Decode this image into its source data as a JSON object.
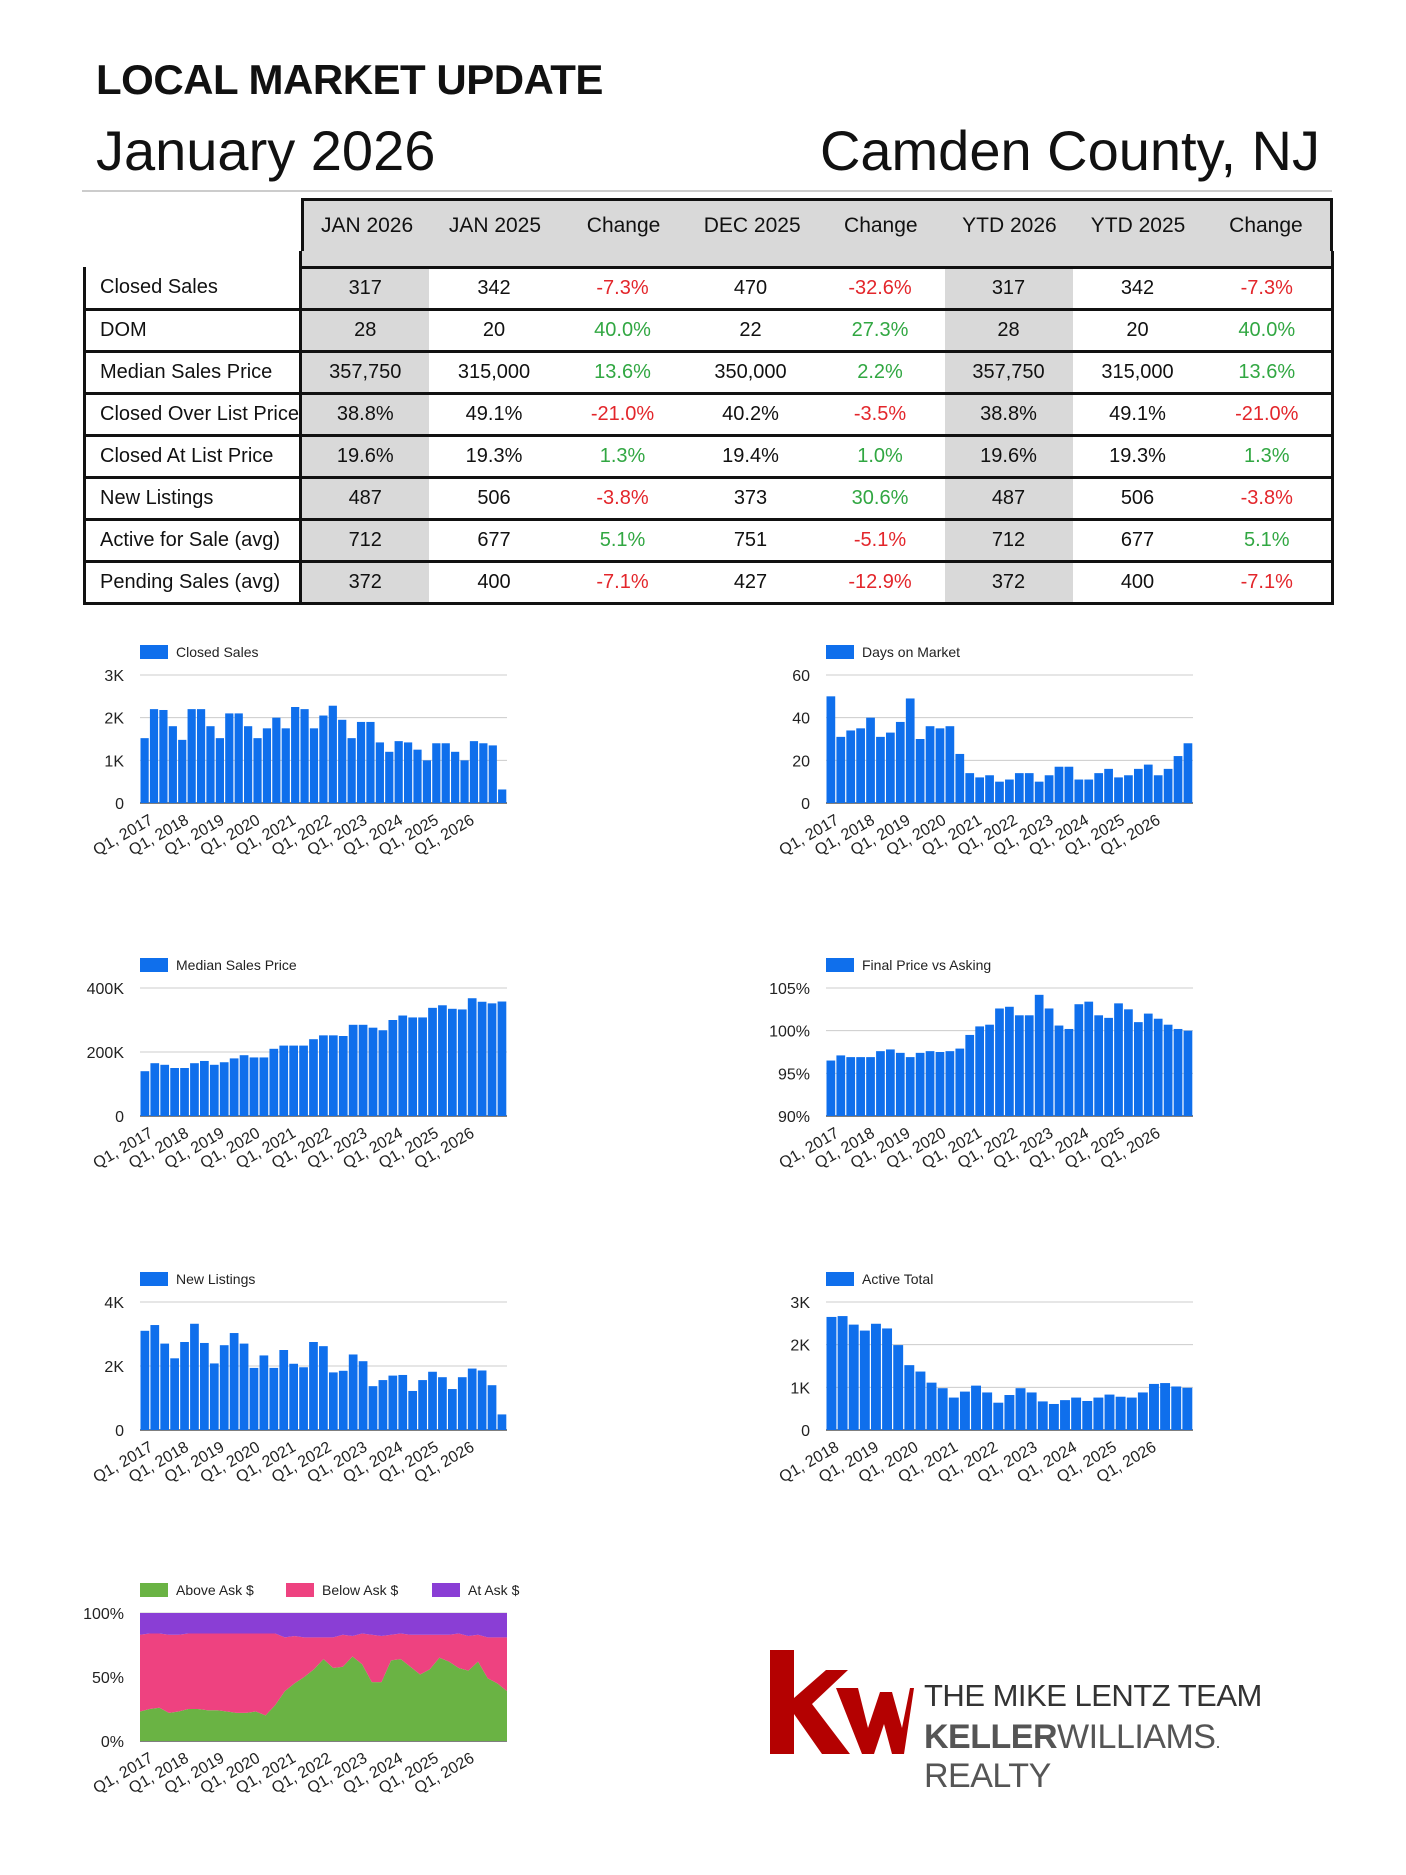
{
  "header": {
    "kicker": "LOCAL MARKET UPDATE",
    "month": "January 2026",
    "area": "Camden County, NJ"
  },
  "table": {
    "columns": [
      "JAN 2026",
      "JAN 2025",
      "Change",
      "DEC 2025",
      "Change",
      "YTD 2026",
      "YTD 2025",
      "Change"
    ],
    "rows": [
      {
        "label": "Closed Sales",
        "cells": [
          "317",
          "342",
          "-7.3%",
          "470",
          "-32.6%",
          "317",
          "342",
          "-7.3%"
        ]
      },
      {
        "label": "DOM",
        "cells": [
          "28",
          "20",
          "40.0%",
          "22",
          "27.3%",
          "28",
          "20",
          "40.0%"
        ]
      },
      {
        "label": "Median Sales Price",
        "cells": [
          "357,750",
          "315,000",
          "13.6%",
          "350,000",
          "2.2%",
          "357,750",
          "315,000",
          "13.6%"
        ]
      },
      {
        "label": "Closed Over List Price",
        "cells": [
          "38.8%",
          "49.1%",
          "-21.0%",
          "40.2%",
          "-3.5%",
          "38.8%",
          "49.1%",
          "-21.0%"
        ]
      },
      {
        "label": "Closed At List Price",
        "cells": [
          "19.6%",
          "19.3%",
          "1.3%",
          "19.4%",
          "1.0%",
          "19.6%",
          "19.3%",
          "1.3%"
        ]
      },
      {
        "label": "New Listings",
        "cells": [
          "487",
          "506",
          "-3.8%",
          "373",
          "30.6%",
          "487",
          "506",
          "-3.8%"
        ]
      },
      {
        "label": "Active for Sale (avg)",
        "cells": [
          "712",
          "677",
          "5.1%",
          "751",
          "-5.1%",
          "712",
          "677",
          "5.1%"
        ]
      },
      {
        "label": "Pending Sales (avg)",
        "cells": [
          "372",
          "400",
          "-7.1%",
          "427",
          "-12.9%",
          "372",
          "400",
          "-7.1%"
        ]
      }
    ],
    "colors": {
      "negative": "#e3262b",
      "positive": "#31a742",
      "shade": "#d9d9d9"
    }
  },
  "logo": {
    "team": "THE MIKE LENTZ TEAM",
    "brand_bold": "KELLER",
    "brand_rest": "WILLIAMS",
    "brand_mark": ".",
    "brand_tail": " REALTY",
    "color": "#b40101"
  },
  "chart_data": [
    {
      "type": "bar",
      "legend": "Closed Sales",
      "color": "#0f6fec",
      "ticks": [
        "0",
        "1K",
        "2K",
        "3K"
      ],
      "ylim": [
        0,
        3000
      ],
      "xlabels": [
        "Q1, 2017",
        "Q1, 2018",
        "Q1, 2019",
        "Q1, 2020",
        "Q1, 2021",
        "Q1, 2022",
        "Q1, 2023",
        "Q1, 2024",
        "Q1, 2025",
        "Q1, 2026"
      ],
      "values": [
        1520,
        2200,
        2180,
        1800,
        1480,
        2200,
        2200,
        1800,
        1520,
        2100,
        2100,
        1800,
        1520,
        1750,
        2000,
        1750,
        2250,
        2200,
        1750,
        2050,
        2280,
        1950,
        1520,
        1900,
        1900,
        1420,
        1200,
        1450,
        1420,
        1250,
        1000,
        1400,
        1400,
        1200,
        1000,
        1450,
        1400,
        1350,
        317
      ]
    },
    {
      "type": "bar",
      "legend": "Days on Market",
      "color": "#0f6fec",
      "ticks": [
        "0",
        "20",
        "40",
        "60"
      ],
      "ylim": [
        0,
        60
      ],
      "xlabels": [
        "Q1, 2017",
        "Q1, 2018",
        "Q1, 2019",
        "Q1, 2020",
        "Q1, 2021",
        "Q1, 2022",
        "Q1, 2023",
        "Q1, 2024",
        "Q1, 2025",
        "Q1, 2026"
      ],
      "values": [
        50,
        31,
        34,
        35,
        40,
        31,
        33,
        38,
        49,
        30,
        36,
        35,
        36,
        23,
        14,
        12,
        13,
        10,
        11,
        14,
        14,
        10,
        13,
        17,
        17,
        11,
        11,
        14,
        16,
        12,
        13,
        16,
        18,
        13,
        16,
        22,
        28
      ]
    },
    {
      "type": "bar",
      "legend": "Median Sales Price",
      "color": "#0f6fec",
      "ticks": [
        "0",
        "200K",
        "400K"
      ],
      "ylim": [
        0,
        400000
      ],
      "xlabels": [
        "Q1, 2017",
        "Q1, 2018",
        "Q1, 2019",
        "Q1, 2020",
        "Q1, 2021",
        "Q1, 2022",
        "Q1, 2023",
        "Q1, 2024",
        "Q1, 2025",
        "Q1, 2026"
      ],
      "values": [
        140000,
        165000,
        160000,
        150000,
        150000,
        165000,
        172000,
        160000,
        168000,
        180000,
        190000,
        183000,
        183000,
        210000,
        220000,
        220000,
        220000,
        240000,
        252000,
        252000,
        250000,
        285000,
        285000,
        276000,
        268000,
        300000,
        314000,
        308000,
        308000,
        338000,
        346000,
        335000,
        333000,
        368000,
        357000,
        352000,
        357750
      ]
    },
    {
      "type": "bar",
      "legend": "Final Price vs Asking",
      "color": "#0f6fec",
      "ticks": [
        "90%",
        "95%",
        "100%",
        "105%"
      ],
      "ylim": [
        90,
        105
      ],
      "xlabels": [
        "Q1, 2017",
        "Q1, 2018",
        "Q1, 2019",
        "Q1, 2020",
        "Q1, 2021",
        "Q1, 2022",
        "Q1, 2023",
        "Q1, 2024",
        "Q1, 2025",
        "Q1, 2026"
      ],
      "values": [
        96.5,
        97.1,
        96.9,
        96.9,
        96.9,
        97.6,
        97.8,
        97.4,
        96.9,
        97.4,
        97.6,
        97.5,
        97.6,
        97.9,
        99.5,
        100.5,
        100.7,
        102.6,
        102.8,
        101.8,
        101.8,
        104.2,
        102.6,
        100.6,
        100.2,
        103.1,
        103.4,
        101.8,
        101.5,
        103.2,
        102.5,
        101.0,
        102.0,
        101.4,
        100.7,
        100.2,
        100.0
      ]
    },
    {
      "type": "bar",
      "legend": "New Listings",
      "color": "#0f6fec",
      "ticks": [
        "0",
        "2K",
        "4K"
      ],
      "ylim": [
        0,
        4000
      ],
      "xlabels": [
        "Q1, 2017",
        "Q1, 2018",
        "Q1, 2019",
        "Q1, 2020",
        "Q1, 2021",
        "Q1, 2022",
        "Q1, 2023",
        "Q1, 2024",
        "Q1, 2025",
        "Q1, 2026"
      ],
      "values": [
        3100,
        3280,
        2700,
        2240,
        2750,
        3320,
        2720,
        2080,
        2650,
        3030,
        2700,
        1940,
        2330,
        1940,
        2500,
        2070,
        1960,
        2750,
        2620,
        1800,
        1850,
        2360,
        2150,
        1370,
        1560,
        1700,
        1720,
        1220,
        1560,
        1820,
        1650,
        1280,
        1650,
        1920,
        1860,
        1400,
        487
      ]
    },
    {
      "type": "bar",
      "legend": "Active Total",
      "color": "#0f6fec",
      "ticks": [
        "0",
        "1K",
        "2K",
        "3K"
      ],
      "ylim": [
        0,
        3000
      ],
      "xlabels": [
        "Q1, 2018",
        "Q1, 2019",
        "Q1, 2020",
        "Q1, 2021",
        "Q1, 2022",
        "Q1, 2023",
        "Q1, 2024",
        "Q1, 2025",
        "Q1, 2026"
      ],
      "values": [
        2650,
        2670,
        2470,
        2330,
        2490,
        2380,
        1990,
        1520,
        1370,
        1110,
        980,
        760,
        900,
        1040,
        880,
        640,
        820,
        980,
        880,
        670,
        610,
        700,
        760,
        680,
        760,
        830,
        780,
        760,
        880,
        1080,
        1100,
        1020,
        990
      ]
    },
    {
      "type": "area",
      "stacked": true,
      "percent": true,
      "ticks": [
        "0%",
        "50%",
        "100%"
      ],
      "ylim": [
        0,
        100
      ],
      "xlabels": [
        "Q1, 2017",
        "Q1, 2018",
        "Q1, 2019",
        "Q1, 2020",
        "Q1, 2021",
        "Q1, 2022",
        "Q1, 2023",
        "Q1, 2024",
        "Q1, 2025",
        "Q1, 2026"
      ],
      "series": [
        {
          "name": "Above Ask $",
          "color": "#6ab344",
          "values": [
            23,
            25,
            26,
            22,
            23,
            25,
            25,
            24,
            24,
            23,
            22,
            22,
            23,
            20,
            28,
            39,
            45,
            50,
            56,
            64,
            57,
            58,
            66,
            60,
            46,
            46,
            63,
            64,
            58,
            52,
            56,
            65,
            62,
            57,
            55,
            62,
            49,
            45,
            39
          ]
        },
        {
          "name": "Below Ask $",
          "color": "#ee4280",
          "values": [
            60,
            59,
            58,
            61,
            60,
            59,
            59,
            60,
            60,
            61,
            62,
            62,
            61,
            64,
            56,
            42,
            37,
            31,
            25,
            17,
            24,
            25,
            16,
            24,
            37,
            36,
            20,
            20,
            25,
            31,
            27,
            18,
            21,
            27,
            27,
            21,
            32,
            36,
            42
          ]
        },
        {
          "name": "At Ask $",
          "color": "#8a3ed5",
          "values": [
            17,
            16,
            16,
            17,
            17,
            16,
            16,
            16,
            16,
            16,
            16,
            16,
            16,
            16,
            16,
            19,
            18,
            19,
            19,
            19,
            19,
            17,
            18,
            16,
            17,
            18,
            17,
            16,
            17,
            17,
            17,
            17,
            17,
            16,
            18,
            17,
            19,
            19,
            19
          ]
        }
      ]
    }
  ]
}
